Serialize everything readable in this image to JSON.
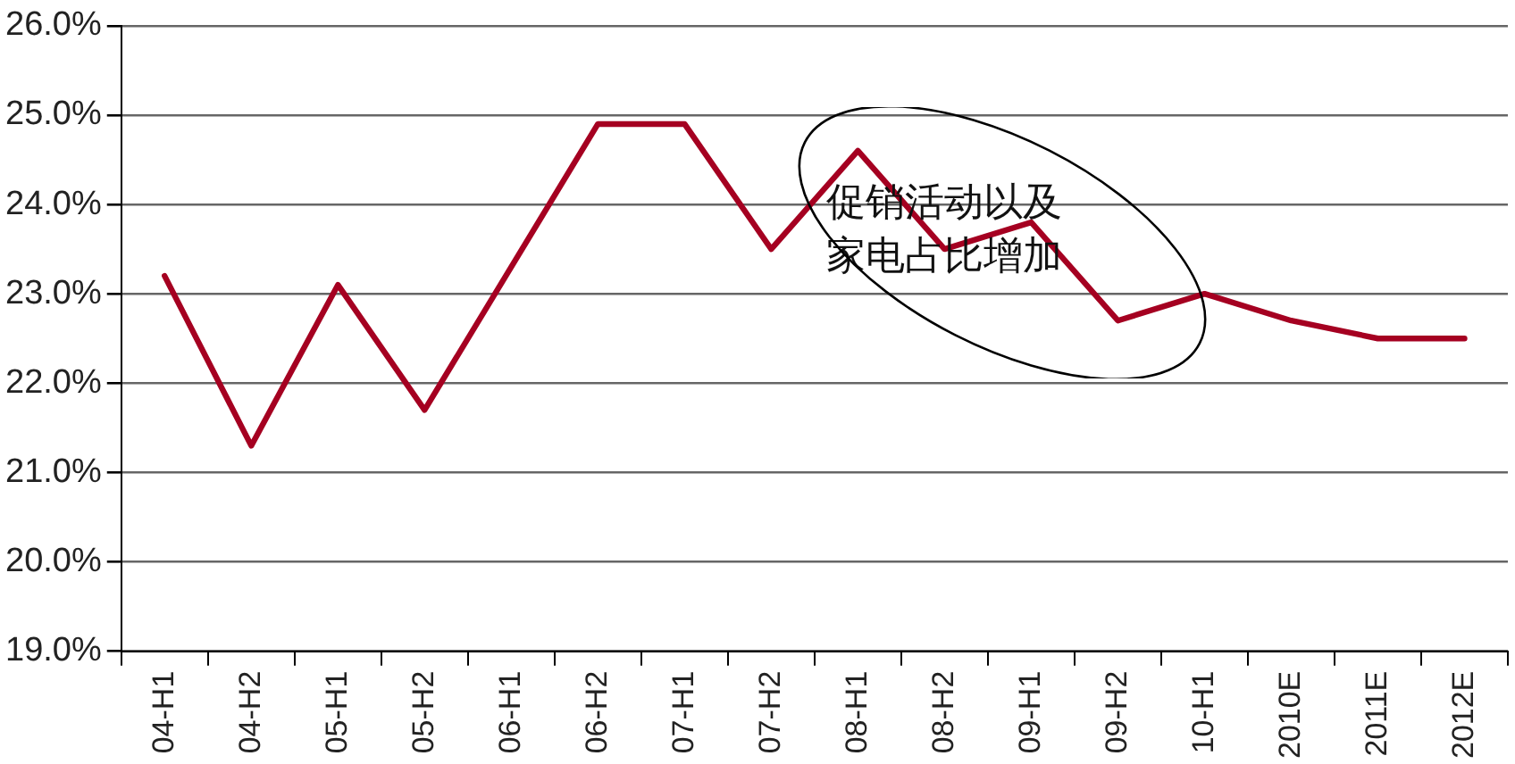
{
  "chart_data": {
    "type": "line",
    "categories": [
      "04-H1",
      "04-H2",
      "05-H1",
      "05-H2",
      "06-H1",
      "06-H2",
      "07-H1",
      "07-H2",
      "08-H1",
      "08-H2",
      "09-H1",
      "09-H2",
      "10-H1",
      "2010E",
      "2011E",
      "2012E"
    ],
    "series": [
      {
        "color": "#a50021",
        "values": [
          23.2,
          21.3,
          23.1,
          21.7,
          23.3,
          24.9,
          24.9,
          23.5,
          24.6,
          23.5,
          23.8,
          22.7,
          23.0,
          22.7,
          22.5,
          22.5
        ]
      }
    ],
    "ylim": [
      19,
      26
    ],
    "yticks": [
      {
        "value": 19,
        "label": "19.0%"
      },
      {
        "value": 20,
        "label": "20.0%"
      },
      {
        "value": 21,
        "label": "21.0%"
      },
      {
        "value": 22,
        "label": "22.0%"
      },
      {
        "value": 23,
        "label": "23.0%"
      },
      {
        "value": 24,
        "label": "24.0%"
      },
      {
        "value": 25,
        "label": "25.0%"
      },
      {
        "value": 26,
        "label": "26.0%"
      }
    ],
    "grid": "y",
    "legend": false,
    "marker": "none",
    "line_style": "solid",
    "annotations": [
      {
        "text": "促销活动以及家电占比增加",
        "x": "08-H2",
        "y": 23.7
      }
    ]
  }
}
